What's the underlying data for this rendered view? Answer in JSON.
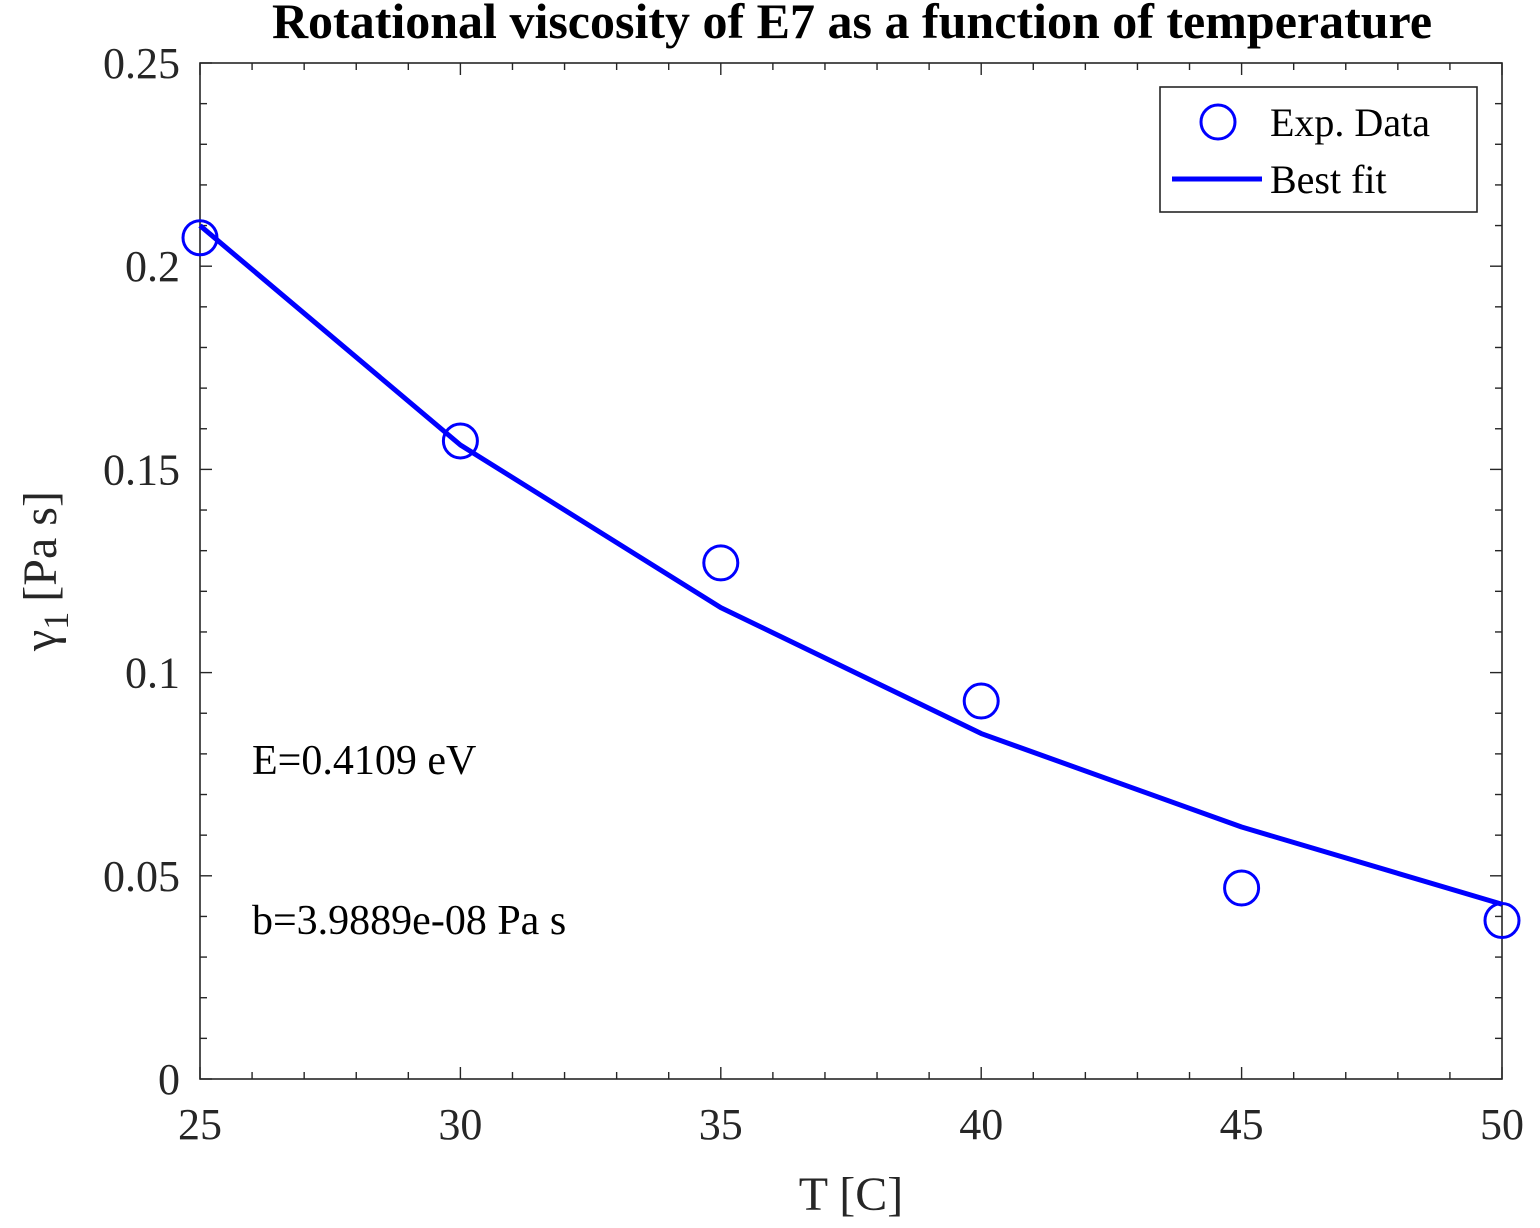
{
  "chart_data": {
    "type": "scatter",
    "title": "Rotational viscosity of E7 as a function of temperature",
    "xlabel": "T [C]",
    "ylabel": {
      "symbol": "γ",
      "subscript": "1",
      "unit": "[Pa s]"
    },
    "xlim": [
      25,
      50
    ],
    "ylim": [
      0,
      0.25
    ],
    "xticks": [
      25,
      30,
      35,
      40,
      45,
      50
    ],
    "xtick_labels": [
      "25",
      "30",
      "35",
      "40",
      "45",
      "50"
    ],
    "yticks": [
      0,
      0.05,
      0.1,
      0.15,
      0.2,
      0.25
    ],
    "ytick_labels": [
      "0",
      "0.05",
      "0.1",
      "0.15",
      "0.2",
      "0.25"
    ],
    "x_minor_step": 1,
    "y_minor_step": 0.01,
    "grid": false,
    "legend_position": "top-right",
    "series": [
      {
        "name": "Exp. Data",
        "style": "marker-circle",
        "color": "#0000ff",
        "x": [
          25,
          30,
          35,
          40,
          45,
          50
        ],
        "y": [
          0.207,
          0.157,
          0.127,
          0.093,
          0.047,
          0.039
        ]
      },
      {
        "name": "Best fit",
        "style": "line",
        "color": "#0000ff",
        "x": [
          25,
          30,
          35,
          40,
          45,
          50
        ],
        "y": [
          0.21,
          0.156,
          0.116,
          0.085,
          0.062,
          0.043
        ]
      }
    ],
    "annotations": [
      "E=0.4109 eV",
      "b=3.9889e-08 Pa s"
    ]
  }
}
